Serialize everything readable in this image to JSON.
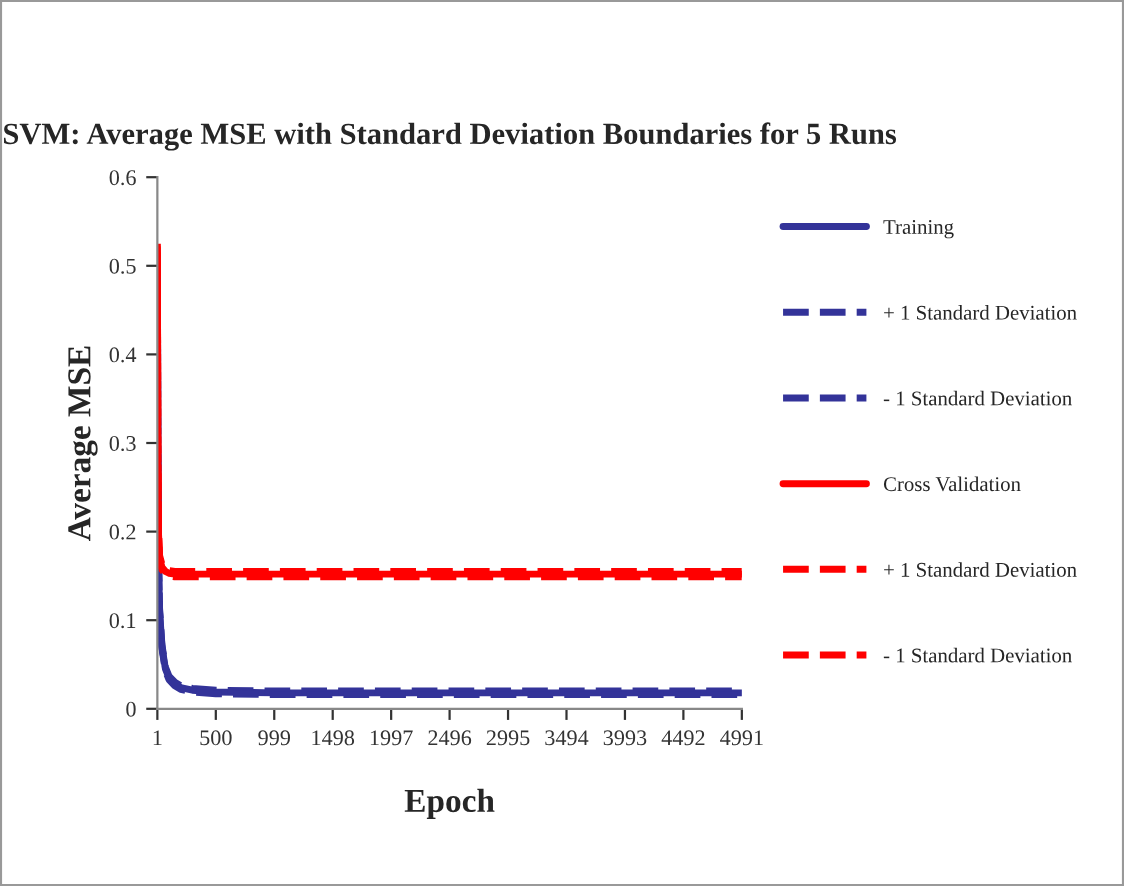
{
  "chart_data": {
    "type": "line",
    "title": "SVM: Average MSE with Standard Deviation Boundaries for 5 Runs",
    "xlabel": "Epoch",
    "ylabel": "Average MSE",
    "x": [
      1,
      5,
      10,
      20,
      40,
      70,
      100,
      150,
      200,
      300,
      500,
      1000,
      2000,
      3000,
      4000,
      4991
    ],
    "series": [
      {
        "name": "Training",
        "color": "#333399",
        "line_style": "solid",
        "values": [
          0.5,
          0.3,
          0.17,
          0.11,
          0.07,
          0.045,
          0.035,
          0.028,
          0.024,
          0.021,
          0.019,
          0.018,
          0.018,
          0.018,
          0.018,
          0.018
        ]
      },
      {
        "name": "+ 1 Standard Deviation",
        "color": "#333399",
        "line_style": "dashed",
        "values": [
          0.505,
          0.305,
          0.174,
          0.113,
          0.072,
          0.047,
          0.037,
          0.03,
          0.026,
          0.023,
          0.021,
          0.02,
          0.02,
          0.02,
          0.02,
          0.02
        ]
      },
      {
        "name": "- 1 Standard Deviation",
        "color": "#333399",
        "line_style": "dashed",
        "values": [
          0.495,
          0.295,
          0.166,
          0.107,
          0.068,
          0.043,
          0.033,
          0.026,
          0.022,
          0.019,
          0.017,
          0.016,
          0.016,
          0.016,
          0.016,
          0.016
        ]
      },
      {
        "name": "Cross Validation",
        "color": "#ff0000",
        "line_style": "solid",
        "values": [
          0.52,
          0.3,
          0.2,
          0.17,
          0.16,
          0.155,
          0.153,
          0.152,
          0.152,
          0.152,
          0.152,
          0.152,
          0.152,
          0.152,
          0.152,
          0.152
        ]
      },
      {
        "name": "+ 1 Standard Deviation",
        "color": "#ff0000",
        "line_style": "dashed",
        "values": [
          0.525,
          0.305,
          0.204,
          0.173,
          0.163,
          0.158,
          0.156,
          0.155,
          0.155,
          0.155,
          0.155,
          0.155,
          0.155,
          0.155,
          0.155,
          0.155
        ]
      },
      {
        "name": "- 1 Standard Deviation",
        "color": "#ff0000",
        "line_style": "dashed",
        "values": [
          0.515,
          0.295,
          0.196,
          0.167,
          0.157,
          0.152,
          0.15,
          0.149,
          0.149,
          0.149,
          0.149,
          0.149,
          0.149,
          0.149,
          0.149,
          0.149
        ]
      }
    ],
    "xlim": [
      1,
      4991
    ],
    "xticks": [
      1,
      500,
      999,
      1498,
      1997,
      2496,
      2995,
      3494,
      3993,
      4492,
      4991
    ],
    "ylim": [
      0,
      0.6
    ],
    "yticks": [
      0,
      0.1,
      0.2,
      0.3,
      0.4,
      0.5,
      0.6
    ],
    "grid": false,
    "legend": "right",
    "marker": "none"
  }
}
